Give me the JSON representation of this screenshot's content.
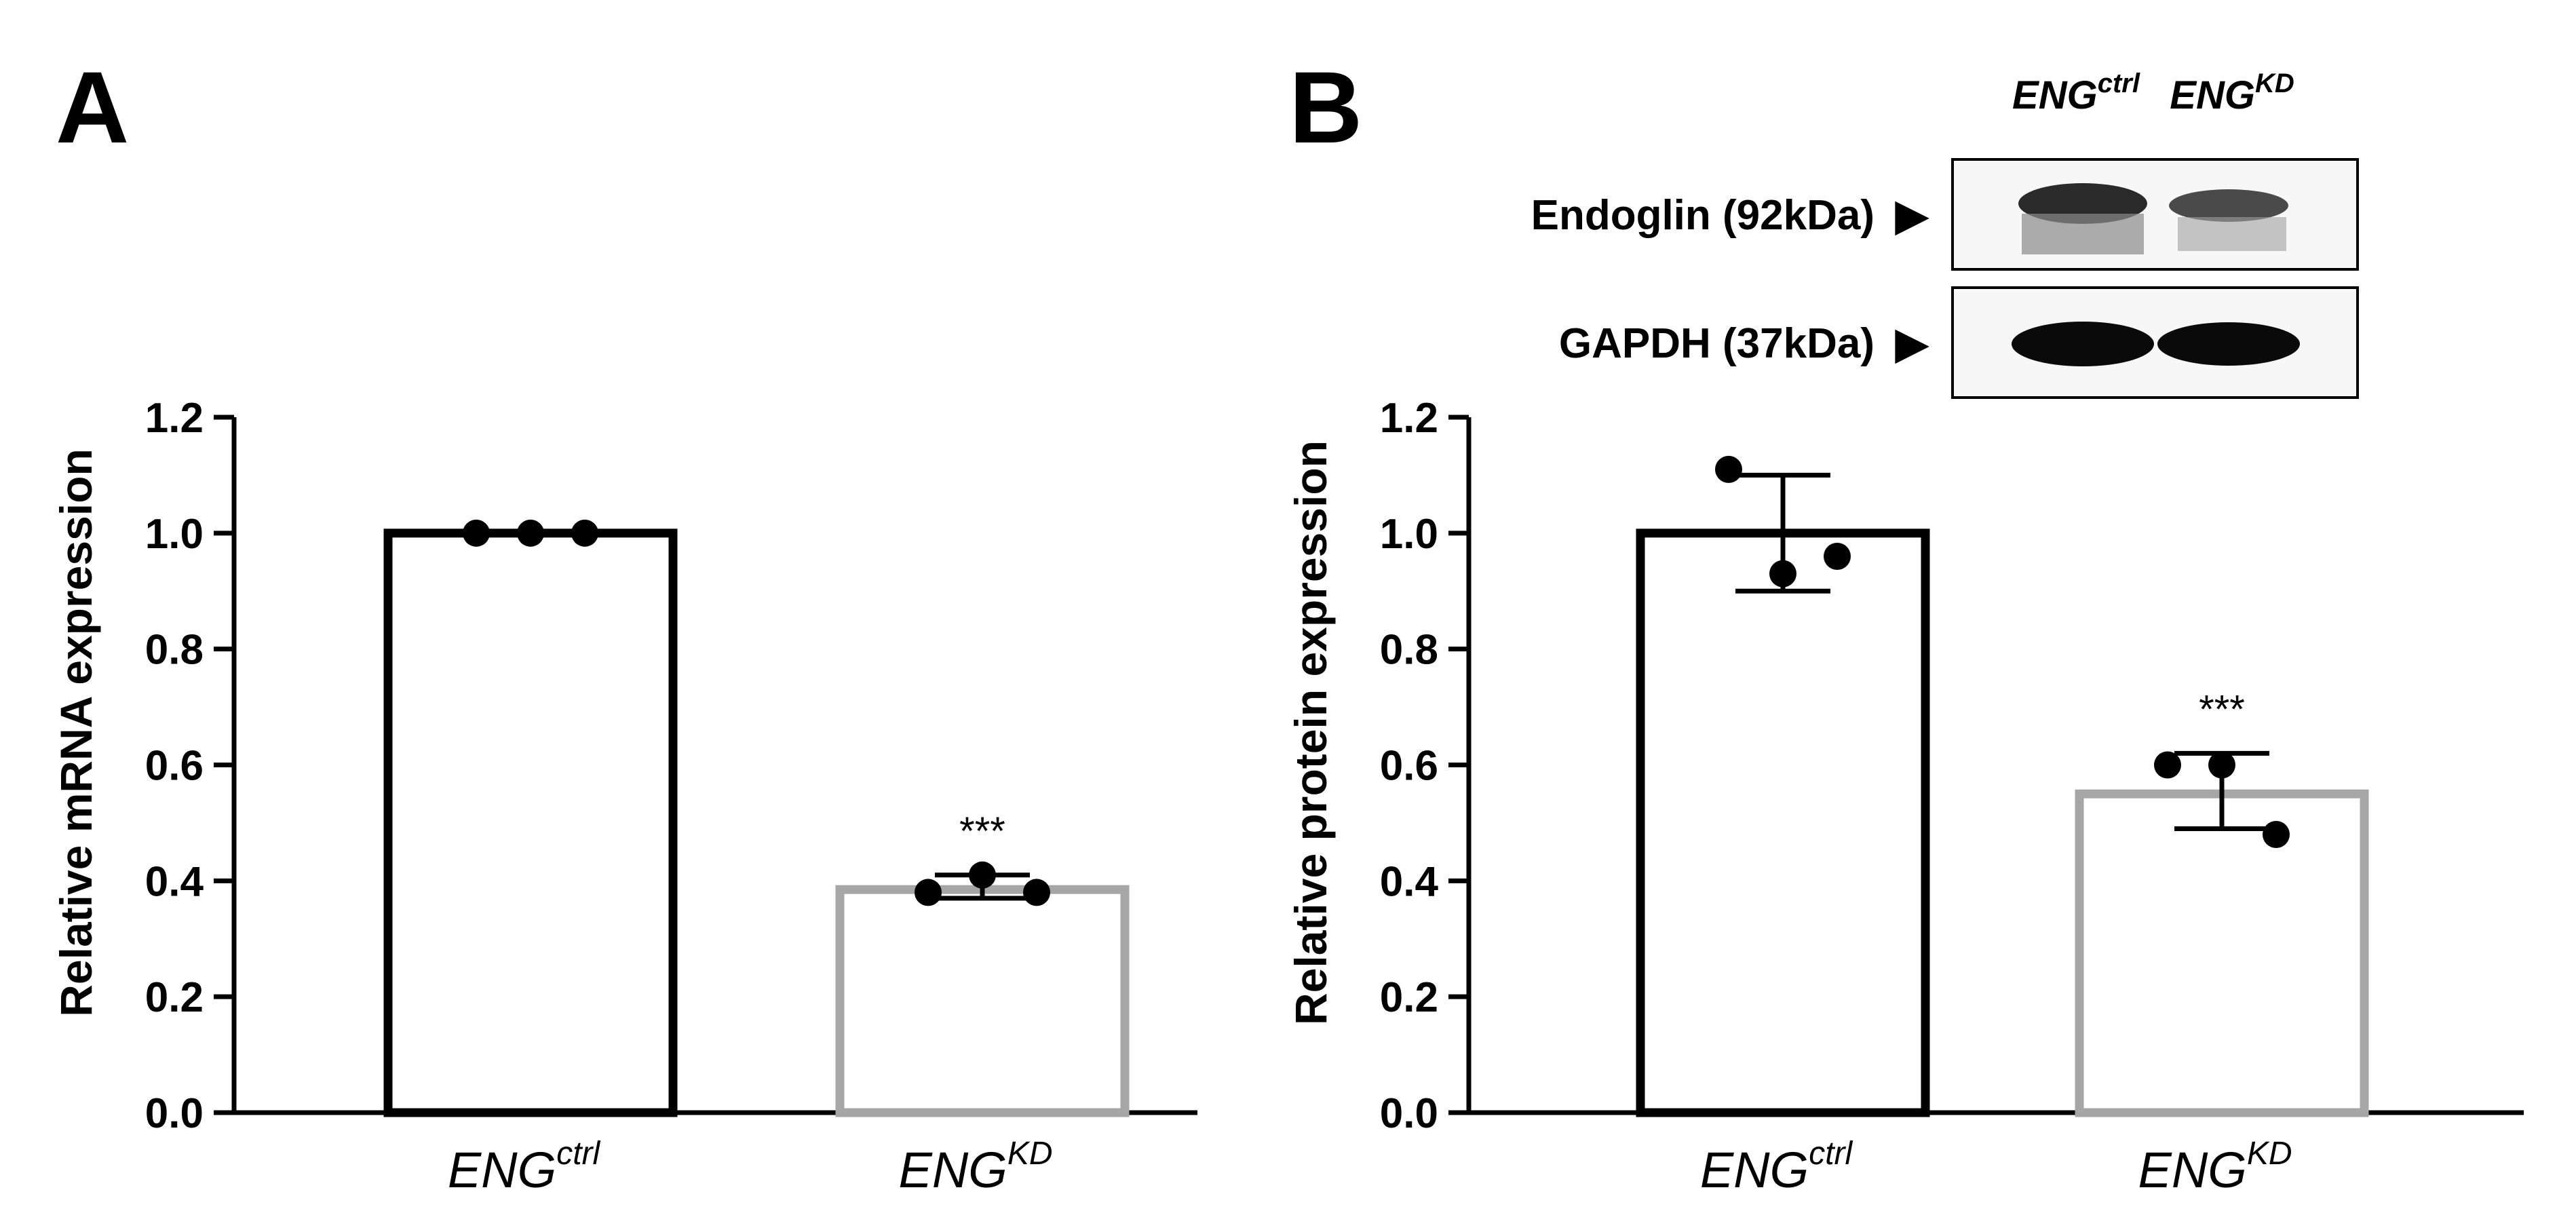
{
  "chart_data": [
    {
      "panel": "A",
      "type": "bar",
      "ylabel": "Relative mRNA expression",
      "ylim": [
        0,
        1.2
      ],
      "yticks": [
        "0.0",
        "0.2",
        "0.4",
        "0.6",
        "0.8",
        "1.0",
        "1.2"
      ],
      "categories": [
        {
          "base": "ENG",
          "sup": "ctrl"
        },
        {
          "base": "ENG",
          "sup": "KD"
        }
      ],
      "values": [
        1.0,
        0.385
      ],
      "error_bars": [
        [
          1.0,
          1.0
        ],
        [
          0.37,
          0.41
        ]
      ],
      "points": [
        [
          1.0,
          1.0,
          1.0
        ],
        [
          0.38,
          0.41,
          0.38
        ]
      ],
      "bar_colors": [
        "#000000",
        "#a6a6a6"
      ],
      "annotations": [
        {
          "category": 1,
          "text": "***"
        }
      ]
    },
    {
      "panel": "B",
      "type": "bar",
      "ylabel": "Relative protein expression",
      "ylim": [
        0,
        1.2
      ],
      "yticks": [
        "0.0",
        "0.2",
        "0.4",
        "0.6",
        "0.8",
        "1.0",
        "1.2"
      ],
      "categories": [
        {
          "base": "ENG",
          "sup": "ctrl"
        },
        {
          "base": "ENG",
          "sup": "KD"
        }
      ],
      "values": [
        1.0,
        0.55
      ],
      "error_bars": [
        [
          0.9,
          1.1
        ],
        [
          0.49,
          0.62
        ]
      ],
      "points": [
        [
          1.11,
          0.93,
          0.96
        ],
        [
          0.6,
          0.6,
          0.48
        ]
      ],
      "bar_colors": [
        "#000000",
        "#a6a6a6"
      ],
      "annotations": [
        {
          "category": 1,
          "text": "***"
        }
      ]
    }
  ],
  "blot": {
    "lanes": [
      {
        "base": "ENG",
        "sup": "ctrl"
      },
      {
        "base": "ENG",
        "sup": "KD"
      }
    ],
    "rows": [
      {
        "label": "Endoglin (92kDa)",
        "marker": "▶"
      },
      {
        "label": "GAPDH (37kDa)",
        "marker": "▶"
      }
    ]
  }
}
